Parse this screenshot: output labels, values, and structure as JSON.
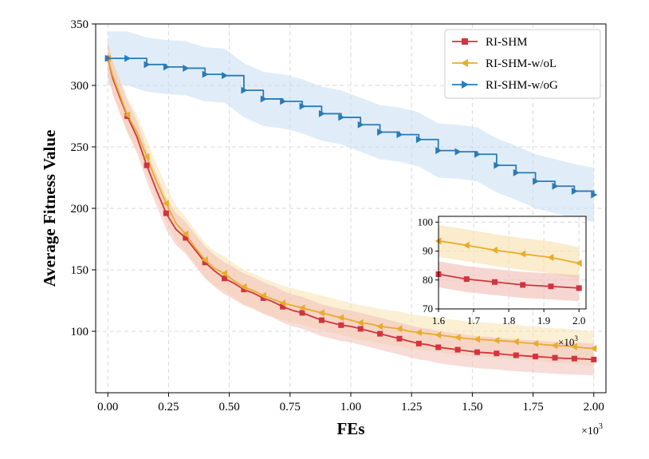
{
  "chart_data": {
    "type": "line",
    "title": "",
    "xlabel": "FEs",
    "ylabel": "Average Fitness Value",
    "x_scale_note": "×10",
    "x_scale_exp": "3",
    "xlim": [
      -0.05,
      2.05
    ],
    "ylim": [
      50,
      350
    ],
    "xticks": [
      0,
      0.25,
      0.5,
      0.75,
      1.0,
      1.25,
      1.5,
      1.75,
      2.0
    ],
    "xtick_labels": [
      "0.00",
      "0.25",
      "0.50",
      "0.75",
      "1.00",
      "1.25",
      "1.50",
      "1.75",
      "2.00"
    ],
    "yticks": [
      100,
      150,
      200,
      250,
      300,
      350
    ],
    "ytick_labels": [
      "100",
      "150",
      "200",
      "250",
      "300",
      "350"
    ],
    "grid": true,
    "legend_position": "top-right",
    "series": [
      {
        "name": "RI-SHM",
        "color": "#d1343f",
        "band_color": "#f3c0b8",
        "marker": "square",
        "band": 13,
        "x": [
          0,
          0.02,
          0.05,
          0.08,
          0.12,
          0.16,
          0.2,
          0.24,
          0.28,
          0.32,
          0.36,
          0.4,
          0.44,
          0.48,
          0.52,
          0.56,
          0.6,
          0.64,
          0.68,
          0.72,
          0.76,
          0.8,
          0.84,
          0.88,
          0.92,
          0.96,
          1.0,
          1.04,
          1.08,
          1.12,
          1.16,
          1.2,
          1.24,
          1.28,
          1.32,
          1.36,
          1.4,
          1.44,
          1.48,
          1.52,
          1.56,
          1.6,
          1.64,
          1.68,
          1.72,
          1.76,
          1.8,
          1.84,
          1.88,
          1.92,
          1.96,
          2.0
        ],
        "values": [
          322,
          306,
          290,
          275,
          258,
          235,
          215,
          196,
          183,
          176,
          166,
          156,
          149,
          143,
          139,
          134,
          131,
          127,
          124,
          120,
          117,
          115,
          112,
          109,
          107,
          105,
          104,
          102,
          100,
          98,
          96,
          94,
          92,
          90,
          89,
          87,
          86,
          85,
          84,
          83,
          82.5,
          82,
          81,
          80.5,
          80,
          79.5,
          79,
          78.5,
          78,
          77.8,
          77.5,
          77
        ],
        "marker_x": [
          0,
          0.08,
          0.16,
          0.24,
          0.32,
          0.4,
          0.48,
          0.56,
          0.64,
          0.72,
          0.8,
          0.88,
          0.96,
          1.04,
          1.12,
          1.2,
          1.28,
          1.36,
          1.44,
          1.52,
          1.6,
          1.68,
          1.76,
          1.84,
          1.92,
          2.0
        ],
        "marker_values": [
          322,
          275,
          235,
          196,
          176,
          156,
          143,
          134,
          127,
          120,
          115,
          109,
          105,
          102,
          98,
          94,
          90,
          87,
          85,
          83,
          82,
          80.5,
          79.5,
          78.5,
          77.8,
          77
        ]
      },
      {
        "name": "RI-SHM-w/oL",
        "color": "#e8ac2c",
        "band_color": "#f8e2b0",
        "marker": "triangle-left",
        "band": 14,
        "x": [
          0,
          0.02,
          0.05,
          0.08,
          0.12,
          0.16,
          0.2,
          0.24,
          0.28,
          0.32,
          0.36,
          0.4,
          0.44,
          0.48,
          0.52,
          0.56,
          0.6,
          0.64,
          0.68,
          0.72,
          0.76,
          0.8,
          0.84,
          0.88,
          0.92,
          0.96,
          1.0,
          1.04,
          1.08,
          1.12,
          1.16,
          1.2,
          1.24,
          1.28,
          1.32,
          1.36,
          1.4,
          1.44,
          1.48,
          1.52,
          1.56,
          1.6,
          1.64,
          1.68,
          1.72,
          1.76,
          1.8,
          1.84,
          1.88,
          1.92,
          1.96,
          2.0
        ],
        "values": [
          322,
          308,
          292,
          276,
          262,
          242,
          222,
          204,
          188,
          179,
          168,
          158,
          151,
          147,
          141,
          136,
          133,
          129,
          126,
          123,
          121,
          119,
          117,
          115,
          113,
          111,
          109,
          107,
          106,
          104,
          103,
          102,
          100,
          99,
          98,
          97,
          96,
          95,
          94,
          93.5,
          93,
          92.5,
          92,
          91.5,
          90.5,
          90,
          89,
          88.5,
          88,
          87.5,
          86.5,
          86
        ],
        "marker_x": [
          0,
          0.08,
          0.16,
          0.24,
          0.32,
          0.4,
          0.48,
          0.56,
          0.64,
          0.72,
          0.8,
          0.88,
          0.96,
          1.04,
          1.12,
          1.2,
          1.28,
          1.36,
          1.44,
          1.52,
          1.6,
          1.68,
          1.76,
          1.84,
          1.92,
          2.0
        ],
        "marker_values": [
          322,
          276,
          242,
          204,
          179,
          158,
          147,
          136,
          129,
          123,
          119,
          115,
          111,
          107,
          104,
          102,
          99,
          97,
          95,
          93.5,
          92.5,
          91.5,
          90,
          88.5,
          87.5,
          86
        ]
      },
      {
        "name": "RI-SHM-w/oG",
        "color": "#2a7ab8",
        "band_color": "#c7dff2",
        "marker": "triangle-right",
        "band": 22,
        "x": [
          0,
          0.08,
          0.16,
          0.24,
          0.32,
          0.4,
          0.48,
          0.56,
          0.64,
          0.72,
          0.8,
          0.88,
          0.96,
          1.04,
          1.12,
          1.2,
          1.28,
          1.36,
          1.44,
          1.52,
          1.6,
          1.68,
          1.76,
          1.84,
          1.92,
          2.0
        ],
        "values": [
          322,
          322,
          317,
          315,
          314,
          309,
          308,
          296,
          289,
          287,
          283,
          277,
          274,
          268,
          262,
          260,
          256,
          247,
          246,
          244,
          235,
          229,
          222,
          218,
          214,
          211
        ]
      }
    ],
    "inset": {
      "xlim": [
        1.6,
        2.02
      ],
      "ylim": [
        70,
        102
      ],
      "xticks": [
        1.6,
        1.7,
        1.8,
        1.9,
        2.0
      ],
      "xtick_labels": [
        "1.6",
        "1.7",
        "1.8",
        "1.9",
        "2.0"
      ],
      "yticks": [
        70,
        80,
        90,
        100
      ],
      "ytick_labels": [
        "70",
        "80",
        "90",
        "100"
      ],
      "x_scale_note": "×10",
      "x_scale_exp": "3",
      "series": [
        {
          "name": "RI-SHM",
          "x": [
            1.6,
            1.68,
            1.76,
            1.84,
            1.92,
            2.0
          ],
          "values": [
            82,
            80.3,
            79.3,
            78.3,
            77.8,
            77.2
          ],
          "band": 4.5
        },
        {
          "name": "RI-SHM-w/oL",
          "x": [
            1.6,
            1.68,
            1.76,
            1.84,
            1.92,
            2.0
          ],
          "values": [
            93.5,
            92,
            90.3,
            89,
            87.8,
            85.8
          ],
          "band": 5.5
        }
      ]
    }
  }
}
